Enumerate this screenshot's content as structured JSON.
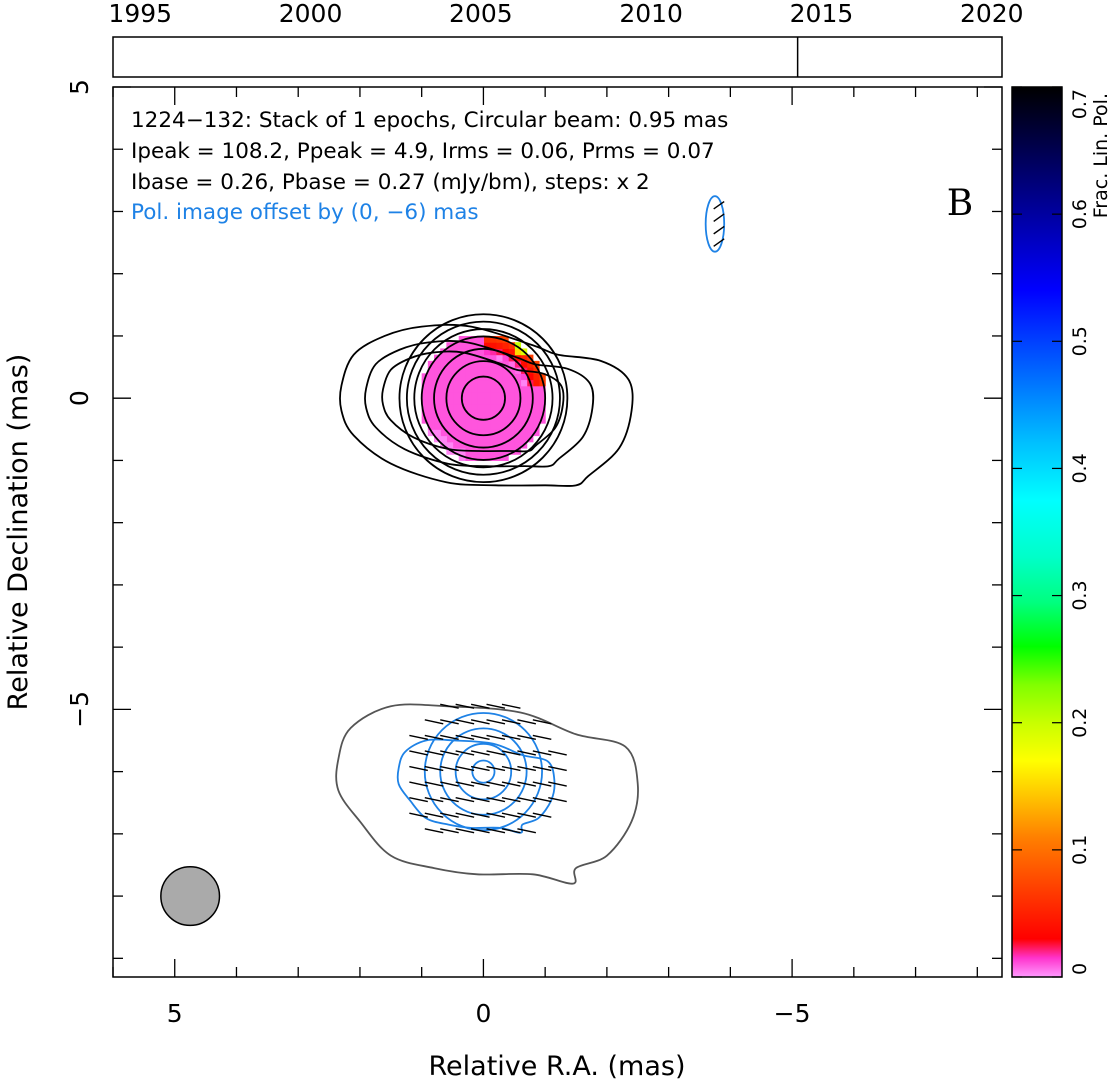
{
  "chart_data": {
    "type": "contour",
    "panel_label": "B",
    "timeline": {
      "tick_labels": [
        "1995",
        "2000",
        "2005",
        "2010",
        "2015",
        "2020"
      ],
      "tick_years": [
        1995,
        2000,
        2005,
        2010,
        2015,
        2020
      ],
      "range": [
        1994.2,
        2020.3
      ],
      "epoch_markers": [
        2014.3
      ]
    },
    "main_plot": {
      "xlabel": "Relative R.A. (mas)",
      "ylabel": "Relative Declination (mas)",
      "xlim": [
        6.0,
        -8.4
      ],
      "ylim": [
        -9.3,
        5.0
      ],
      "x_ticks": [
        5,
        0,
        -5
      ],
      "x_tick_labels": [
        "5",
        "0",
        "−5"
      ],
      "y_ticks": [
        5,
        0,
        -5
      ],
      "y_tick_labels": [
        "5",
        "0",
        "−5"
      ],
      "annotations": [
        "1224−132: Stack of 1 epochs, Circular beam: 0.95 mas",
        "Ipeak = 108.2, Ppeak = 4.9, Irms = 0.06, Prms = 0.07",
        "Ibase = 0.26, Pbase = 0.27 (mJy/bm), steps: x 2",
        "Pol. image offset by (0, −6) mas"
      ],
      "beam": {
        "center": [
          4.75,
          -8.0
        ],
        "diameter_mas": 0.95
      },
      "total_intensity": {
        "peak_position": [
          0,
          0
        ],
        "contour_radii": [
          0.35,
          0.6,
          0.8,
          1.0,
          1.12,
          1.24,
          1.36
        ],
        "outer_contour": [
          [
            2.3,
            0.2
          ],
          [
            2.1,
            0.7
          ],
          [
            1.6,
            1.0
          ],
          [
            1.0,
            1.15
          ],
          [
            0.2,
            1.15
          ],
          [
            -0.8,
            0.85
          ],
          [
            -1.2,
            0.7
          ],
          [
            -1.9,
            0.6
          ],
          [
            -2.35,
            0.3
          ],
          [
            -2.4,
            -0.2
          ],
          [
            -2.2,
            -0.8
          ],
          [
            -1.7,
            -1.25
          ],
          [
            -1.5,
            -1.4
          ],
          [
            -1.0,
            -1.4
          ],
          [
            -0.2,
            -1.4
          ],
          [
            0.6,
            -1.35
          ],
          [
            1.5,
            -1.05
          ],
          [
            2.1,
            -0.6
          ],
          [
            2.3,
            -0.2
          ]
        ],
        "fractional_polarization_patch": {
          "center": [
            0,
            0
          ],
          "radius": 1.05,
          "value": 0.01,
          "rim_values": [
            0.08,
            0.15,
            0.24
          ]
        }
      },
      "polarization_offset_mas": [
        0,
        -6
      ],
      "polarized_intensity": {
        "peak_position": [
          0,
          -6
        ],
        "contour_radii": [
          0.18,
          0.45,
          0.7,
          0.95
        ],
        "outer_contour": [
          [
            2.35,
            -5.8
          ],
          [
            2.15,
            -5.3
          ],
          [
            1.5,
            -4.95
          ],
          [
            0.6,
            -4.95
          ],
          [
            -0.6,
            -5.05
          ],
          [
            -1.5,
            -5.4
          ],
          [
            -2.3,
            -5.6
          ],
          [
            -2.5,
            -6.2
          ],
          [
            -2.4,
            -6.8
          ],
          [
            -2.0,
            -7.35
          ],
          [
            -1.5,
            -7.55
          ],
          [
            -1.45,
            -7.8
          ],
          [
            -0.8,
            -7.65
          ],
          [
            0.1,
            -7.65
          ],
          [
            0.8,
            -7.55
          ],
          [
            1.5,
            -7.35
          ],
          [
            2.0,
            -6.8
          ],
          [
            2.35,
            -6.3
          ]
        ],
        "evpa_vectors": {
          "spacing_mas": 0.25,
          "radius_mas": 1.2,
          "length_mas": 0.33,
          "angle_deg": 65
        },
        "outlier": {
          "center": [
            -3.75,
            2.8
          ],
          "half_width": 0.15,
          "half_height": 0.45
        }
      }
    },
    "colorbar": {
      "label": "Frac. Lin. Pol.",
      "range": [
        0,
        0.7
      ],
      "ticks": [
        0,
        0.1,
        0.2,
        0.3,
        0.4,
        0.5,
        0.6,
        0.7
      ],
      "tick_labels": [
        "0",
        "0.1",
        "0.2",
        "0.3",
        "0.4",
        "0.5",
        "0.6",
        "0.7"
      ],
      "colormap": [
        "#ff99ff",
        "#ff33cc",
        "#ff0000",
        "#ff4000",
        "#ff8000",
        "#ffc000",
        "#ffff00",
        "#c8ff00",
        "#80ff00",
        "#00ff00",
        "#00ff80",
        "#00ffc8",
        "#00ffff",
        "#00c0ff",
        "#0080ff",
        "#0040ff",
        "#0000ff",
        "#0000c0",
        "#000080",
        "#000040",
        "#000000"
      ],
      "colormap_stops": [
        0,
        0.015,
        0.03,
        0.07,
        0.11,
        0.14,
        0.17,
        0.2,
        0.23,
        0.26,
        0.295,
        0.33,
        0.375,
        0.42,
        0.46,
        0.5,
        0.54,
        0.58,
        0.62,
        0.66,
        0.7
      ]
    },
    "colors": {
      "total_intensity_contours": "#000000",
      "polarized_contours": "#1e82e6",
      "polarized_outer_contour": "#555555",
      "beam_fill": "#aaaaaa"
    }
  }
}
